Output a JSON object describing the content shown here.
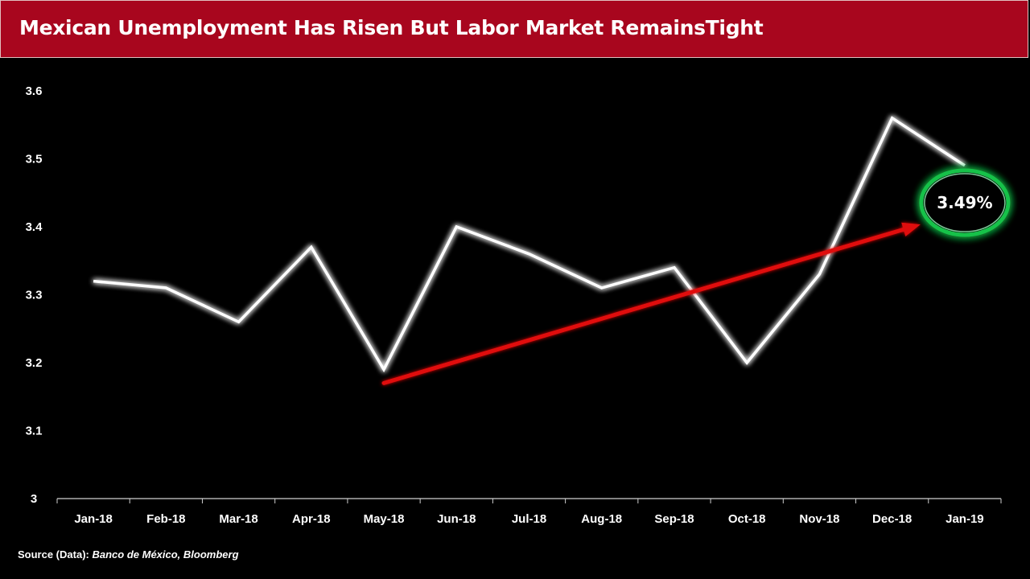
{
  "title": "Mexican Unemployment Has Risen But Labor Market RemainsTight",
  "source": {
    "label": "Source (Data):",
    "value": "Banco de México, Bloomberg"
  },
  "colors": {
    "title_bar": "#a8061e",
    "line": "#ffffff",
    "trend_arrow": "#e01010",
    "callout_ring": "#19c24a",
    "background": "#000000"
  },
  "chart_data": {
    "type": "line",
    "categories": [
      "Jan-18",
      "Feb-18",
      "Mar-18",
      "Apr-18",
      "May-18",
      "Jun-18",
      "Jul-18",
      "Aug-18",
      "Sep-18",
      "Oct-18",
      "Nov-18",
      "Dec-18",
      "Jan-19"
    ],
    "series": [
      {
        "values": [
          3.32,
          3.31,
          3.26,
          3.37,
          3.19,
          3.4,
          3.36,
          3.31,
          3.34,
          3.2,
          3.33,
          3.56,
          3.49
        ]
      }
    ],
    "ylim": [
      3,
      3.6
    ],
    "yticks": [
      "3",
      "3.1",
      "3.2",
      "3.3",
      "3.4",
      "3.5",
      "3.6"
    ],
    "grid": false,
    "trend_arrow": {
      "from": {
        "x": "May-18",
        "y": 3.17
      },
      "to": {
        "x": "Jan-19",
        "y": 3.42
      }
    },
    "callout": {
      "label": "3.49%",
      "x": "Jan-19",
      "y": 3.49
    }
  }
}
